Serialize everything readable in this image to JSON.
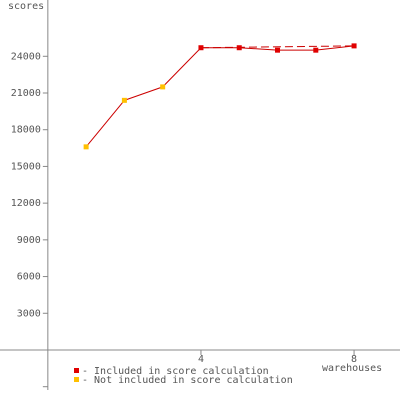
{
  "chart_data": {
    "type": "line",
    "y_label": "scores",
    "x_label": "warehouses",
    "series": [
      {
        "name": "- Included in score calculation",
        "color": "#e00000",
        "x": [
          4,
          5,
          6,
          7,
          8
        ],
        "values": [
          24700,
          24700,
          24500,
          24500,
          24850
        ]
      },
      {
        "name": "- Not included in score calculation",
        "color": "#ffc000",
        "x": [
          1,
          2,
          3
        ],
        "values": [
          16600,
          20400,
          21500
        ]
      }
    ],
    "line_color": "#cc0000",
    "xlim": [
      -1.25,
      9.2
    ],
    "ylim": [
      -3270,
      28600
    ],
    "xticks": [
      4,
      8
    ],
    "yticks": [
      {
        "value": -3000,
        "label": null
      },
      3000,
      6000,
      9000,
      12000,
      15000,
      18000,
      21000,
      24000
    ]
  }
}
